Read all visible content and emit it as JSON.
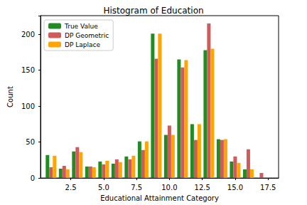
{
  "chart_data": {
    "type": "bar",
    "title": "Histogram of Education",
    "x_label": "Educational Attainment Category",
    "y_label": "Count",
    "x": [
      1,
      2,
      3,
      4,
      5,
      6,
      7,
      8,
      9,
      10,
      11,
      12,
      13,
      14,
      15,
      16,
      17
    ],
    "series": [
      {
        "name": "True Value",
        "color": "#228b22",
        "values": [
          32,
          13,
          37,
          16,
          23,
          20,
          30,
          51,
          201,
          60,
          165,
          75,
          178,
          54,
          23,
          12,
          0
        ]
      },
      {
        "name": "DP Geometric",
        "color": "#cd5c5c",
        "values": [
          15,
          17,
          43,
          16,
          19,
          26,
          26,
          39,
          166,
          73,
          154,
          53,
          215,
          53,
          30,
          40,
          7
        ]
      },
      {
        "name": "DP Laplace",
        "color": "#ffa500",
        "values": [
          31,
          12,
          36,
          15,
          24,
          22,
          31,
          51,
          201,
          60,
          164,
          75,
          180,
          54,
          21,
          12,
          0
        ]
      }
    ],
    "xlim": [
      0.2,
      18.3
    ],
    "xticks": [
      2.5,
      {
        "value": 5,
        "label": "5.0"
      },
      7.5,
      {
        "value": 10,
        "label": "10.0"
      },
      12.5,
      {
        "value": 15,
        "label": "15.0"
      },
      17.5
    ],
    "ylim": [
      0,
      226
    ],
    "yticks": [
      0,
      50,
      100,
      150,
      200
    ],
    "legend": "upper left",
    "grid": false
  }
}
